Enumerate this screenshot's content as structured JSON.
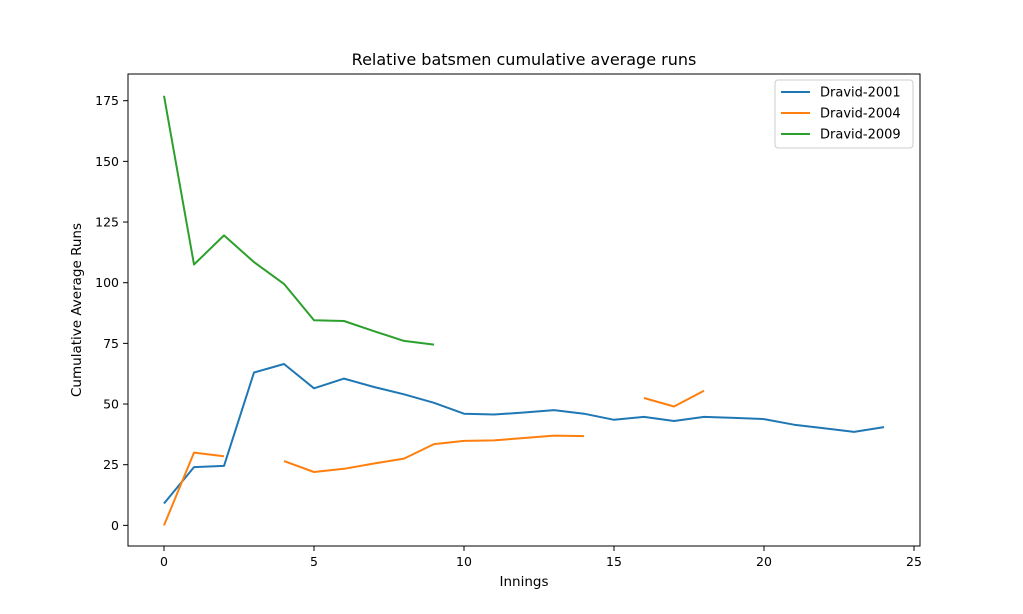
{
  "chart_data": {
    "type": "line",
    "title": "Relative batsmen cumulative average runs",
    "xlabel": "Innings",
    "ylabel": "Cumulative Average Runs",
    "xlim": [
      -1.2,
      25.2
    ],
    "ylim": [
      -8.5,
      186
    ],
    "xticks": [
      0,
      5,
      10,
      15,
      20,
      25
    ],
    "yticks": [
      0,
      25,
      50,
      75,
      100,
      125,
      150,
      175
    ],
    "grid": false,
    "legend_position": "top-right",
    "series": [
      {
        "name": "Dravid-2001",
        "color": "#1f77b4",
        "points": [
          [
            0,
            9
          ],
          [
            1,
            24
          ],
          [
            2,
            24.5
          ],
          [
            3,
            63
          ],
          [
            4,
            66.5
          ],
          [
            5,
            56.5
          ],
          [
            6,
            60.5
          ],
          [
            7,
            57
          ],
          [
            8,
            54
          ],
          [
            9,
            50.5
          ],
          [
            10,
            46
          ],
          [
            11,
            45.7
          ],
          [
            12,
            46.5
          ],
          [
            13,
            47.5
          ],
          [
            14,
            46
          ],
          [
            15,
            43.5
          ],
          [
            16,
            44.7
          ],
          [
            17,
            43
          ],
          [
            18,
            44.7
          ],
          [
            19,
            44.3
          ],
          [
            20,
            43.8
          ],
          [
            21,
            41.5
          ],
          [
            22,
            40
          ],
          [
            23,
            38.5
          ],
          [
            24,
            40.5
          ]
        ]
      },
      {
        "name": "Dravid-2004",
        "color": "#ff7f0e",
        "points": [
          [
            0,
            0
          ],
          [
            1,
            30
          ],
          [
            2,
            28.5
          ],
          [
            3,
            null
          ],
          [
            4,
            26.5
          ],
          [
            5,
            22
          ],
          [
            6,
            23.3
          ],
          [
            7,
            25.5
          ],
          [
            8,
            27.5
          ],
          [
            9,
            33.5
          ],
          [
            10,
            34.8
          ],
          [
            11,
            35
          ],
          [
            12,
            36
          ],
          [
            13,
            37
          ],
          [
            14,
            36.8
          ],
          [
            15,
            null
          ],
          [
            16,
            52.5
          ],
          [
            17,
            49
          ],
          [
            18,
            55.5
          ]
        ]
      },
      {
        "name": "Dravid-2009",
        "color": "#2ca02c",
        "points": [
          [
            0,
            177
          ],
          [
            1,
            107.5
          ],
          [
            2,
            119.5
          ],
          [
            3,
            108.5
          ],
          [
            4,
            99.5
          ],
          [
            5,
            84.5
          ],
          [
            6,
            84.2
          ],
          [
            7,
            80
          ],
          [
            8,
            76
          ],
          [
            9,
            74.5
          ]
        ]
      }
    ]
  }
}
